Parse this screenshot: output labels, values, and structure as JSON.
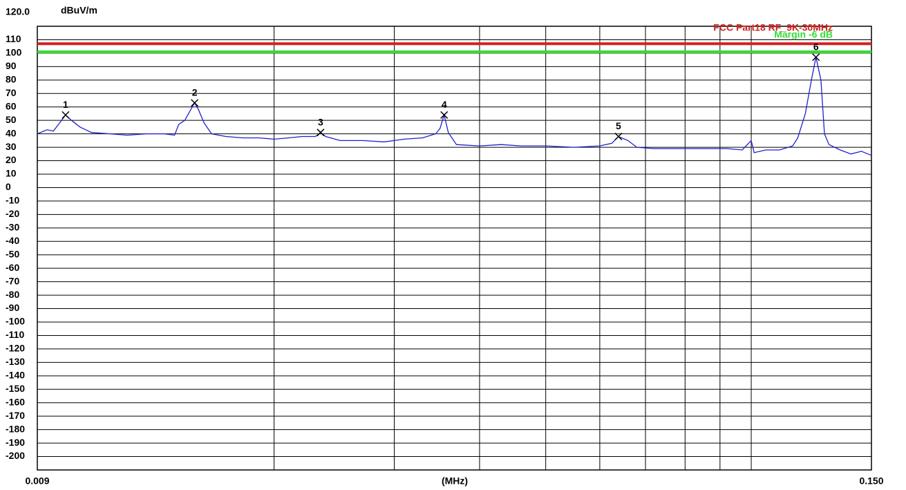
{
  "chart_data": {
    "type": "line",
    "y_unit": "dBuV/m",
    "x_label": "(MHz)",
    "xscale": "log",
    "xlim": [
      0.009,
      0.15
    ],
    "xticks": [
      {
        "value": 0.009,
        "label": "0.009"
      },
      {
        "value": 0.15,
        "label": "0.150"
      }
    ],
    "xgrid": [
      0.02,
      0.03,
      0.04,
      0.05,
      0.06,
      0.07,
      0.08,
      0.09,
      0.1
    ],
    "ylim": [
      -210,
      120
    ],
    "yticks": [
      {
        "value": 120,
        "label": "120.0"
      },
      110,
      100,
      90,
      80,
      70,
      60,
      50,
      40,
      30,
      20,
      10,
      0,
      -10,
      -20,
      -30,
      -40,
      -50,
      -60,
      -70,
      -80,
      -90,
      -100,
      -110,
      -120,
      -130,
      -140,
      -150,
      -160,
      -170,
      -180,
      -190,
      -200
    ],
    "grid": true,
    "limits": [
      {
        "name": "FCC Part18 RF_9K-30MHz",
        "color": "#d42020",
        "value": 107
      },
      {
        "name": "Margin -6 dB",
        "color": "#33dd33",
        "value": 101
      }
    ],
    "x": [
      0.009,
      0.0093,
      0.0095,
      0.0097,
      0.0099,
      0.0101,
      0.0104,
      0.0108,
      0.0115,
      0.0122,
      0.013,
      0.0138,
      0.0143,
      0.0145,
      0.0148,
      0.0151,
      0.0153,
      0.0155,
      0.0158,
      0.0162,
      0.017,
      0.018,
      0.019,
      0.02,
      0.021,
      0.022,
      0.023,
      0.0234,
      0.0238,
      0.025,
      0.027,
      0.029,
      0.031,
      0.033,
      0.0345,
      0.035,
      0.0355,
      0.036,
      0.037,
      0.04,
      0.043,
      0.046,
      0.05,
      0.055,
      0.06,
      0.0625,
      0.0639,
      0.066,
      0.068,
      0.072,
      0.078,
      0.085,
      0.092,
      0.097,
      0.1,
      0.101,
      0.105,
      0.11,
      0.115,
      0.117,
      0.12,
      0.1225,
      0.1244,
      0.1265,
      0.128,
      0.13,
      0.135,
      0.14,
      0.145,
      0.15
    ],
    "series": [
      {
        "color": "#1f1fd0",
        "values": [
          40,
          43,
          42,
          48,
          54,
          50,
          45,
          41,
          40,
          39,
          40,
          40,
          39,
          47,
          50,
          58,
          63,
          58,
          48,
          40,
          38,
          37,
          37,
          36,
          37,
          38,
          38,
          41,
          38,
          35,
          35,
          34,
          36,
          37,
          40,
          44,
          54,
          41,
          32,
          31,
          32,
          31,
          31,
          30,
          31,
          33,
          38,
          35,
          30,
          29,
          29,
          29,
          29,
          28,
          35,
          26,
          28,
          28,
          31,
          37,
          55,
          80,
          97,
          80,
          40,
          32,
          28,
          25,
          27,
          24
        ]
      }
    ],
    "markers": [
      {
        "label": "1",
        "x": 0.0099,
        "y": 54
      },
      {
        "label": "2",
        "x": 0.0153,
        "y": 63
      },
      {
        "label": "3",
        "x": 0.0234,
        "y": 41
      },
      {
        "label": "4",
        "x": 0.0355,
        "y": 54
      },
      {
        "label": "5",
        "x": 0.0639,
        "y": 38
      },
      {
        "label": "6",
        "x": 0.1244,
        "y": 97
      }
    ]
  }
}
